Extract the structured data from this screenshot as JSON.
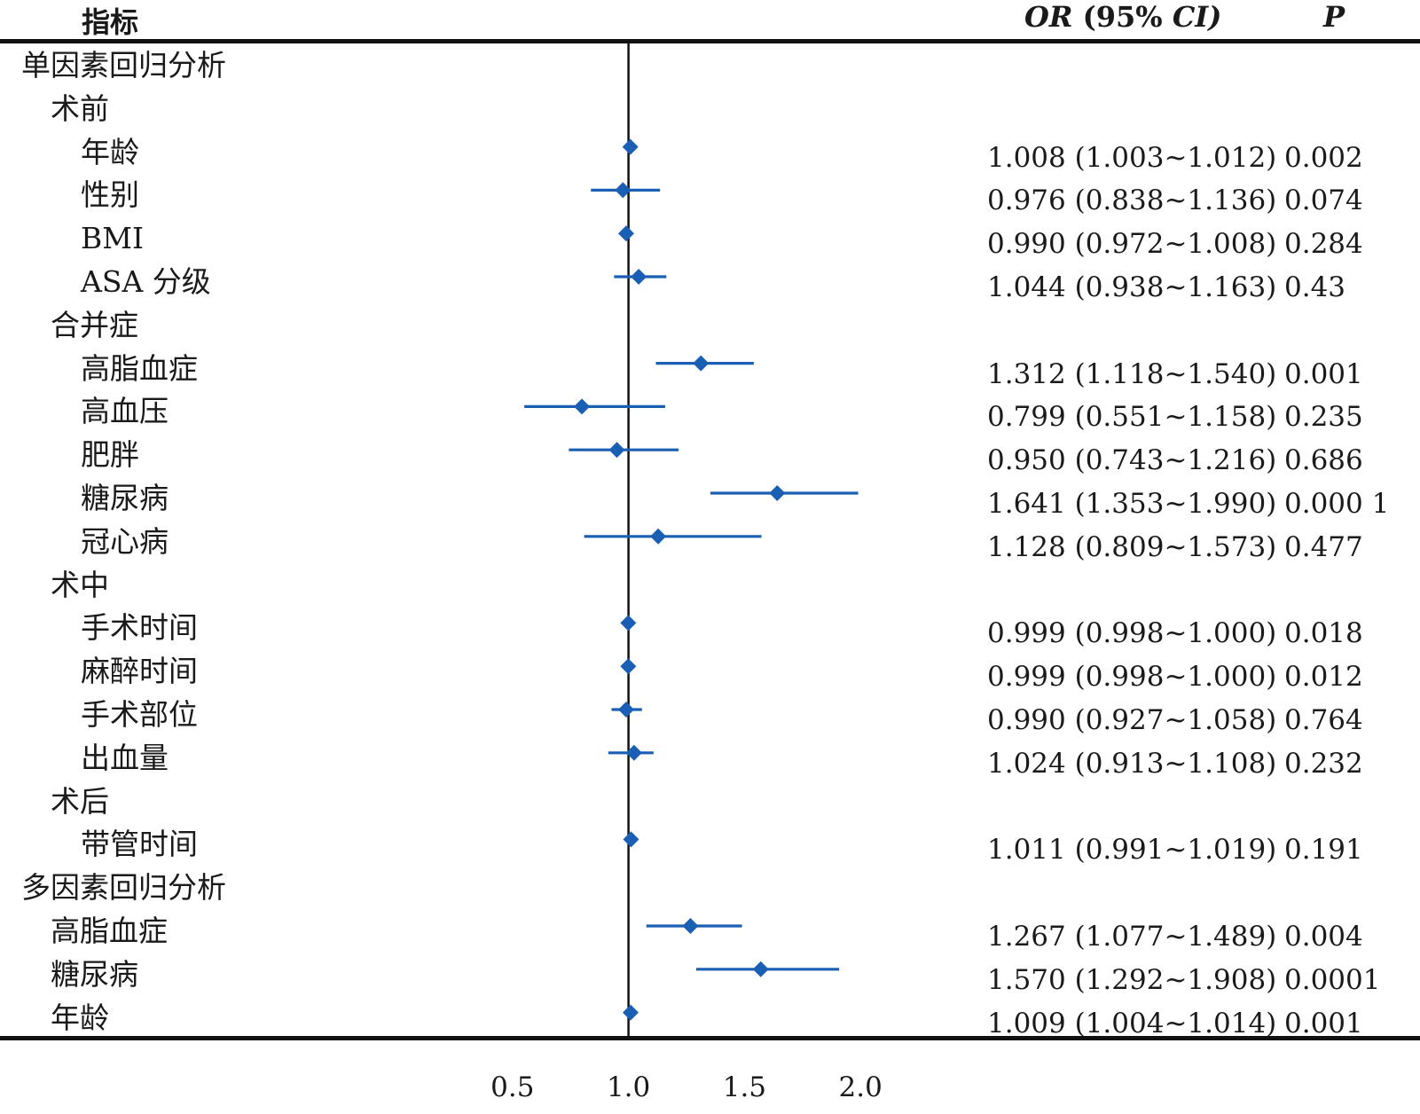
{
  "header": {
    "indicator": "指标",
    "or_ci_or": "OR",
    "or_ci_paren": "(95%",
    "or_ci_ci": "CI)",
    "p": "P"
  },
  "colors": {
    "marker": "#1a5fb4",
    "axis": "#111111"
  },
  "chart_data": {
    "type": "forest",
    "x_ticks": [
      0.5,
      1.0,
      1.5,
      2.0
    ],
    "x_tick_labels": [
      "0.5",
      "1.0",
      "1.5",
      "2.0"
    ],
    "xlim": [
      0.5,
      2.0
    ],
    "reference_line": 1.0,
    "rows": [
      {
        "label": "单因素回归分析",
        "level": 0,
        "or": null
      },
      {
        "label": "术前",
        "level": 1,
        "or": null
      },
      {
        "label": "年龄",
        "level": 2,
        "or": 1.008,
        "lo": 1.003,
        "hi": 1.012,
        "or_ci": "1.008 (1.003~1.012)",
        "p": "0.002"
      },
      {
        "label": "性别",
        "level": 2,
        "or": 0.976,
        "lo": 0.838,
        "hi": 1.136,
        "or_ci": "0.976 (0.838~1.136)",
        "p": "0.074"
      },
      {
        "label": "BMI",
        "level": 2,
        "or": 0.99,
        "lo": 0.972,
        "hi": 1.008,
        "or_ci": "0.990 (0.972~1.008)",
        "p": "0.284"
      },
      {
        "label": "ASA 分级",
        "level": 2,
        "or": 1.044,
        "lo": 0.938,
        "hi": 1.163,
        "or_ci": "1.044 (0.938~1.163)",
        "p": "0.43"
      },
      {
        "label": "合并症",
        "level": 1,
        "or": null
      },
      {
        "label": "高脂血症",
        "level": 2,
        "or": 1.312,
        "lo": 1.118,
        "hi": 1.54,
        "or_ci": "1.312 (1.118~1.540)",
        "p": "0.001"
      },
      {
        "label": "高血压",
        "level": 2,
        "or": 0.799,
        "lo": 0.551,
        "hi": 1.158,
        "or_ci": "0.799 (0.551~1.158)",
        "p": "0.235"
      },
      {
        "label": "肥胖",
        "level": 2,
        "or": 0.95,
        "lo": 0.743,
        "hi": 1.216,
        "or_ci": "0.950 (0.743~1.216)",
        "p": "0.686"
      },
      {
        "label": "糖尿病",
        "level": 2,
        "or": 1.641,
        "lo": 1.353,
        "hi": 1.99,
        "or_ci": "1.641 (1.353~1.990)",
        "p": "0.000 1"
      },
      {
        "label": "冠心病",
        "level": 2,
        "or": 1.128,
        "lo": 0.809,
        "hi": 1.573,
        "or_ci": "1.128 (0.809~1.573)",
        "p": "0.477"
      },
      {
        "label": "术中",
        "level": 1,
        "or": null
      },
      {
        "label": "手术时间",
        "level": 2,
        "or": 0.999,
        "lo": 0.998,
        "hi": 1.0,
        "or_ci": "0.999 (0.998~1.000)",
        "p": "0.018"
      },
      {
        "label": "麻醉时间",
        "level": 2,
        "or": 0.999,
        "lo": 0.998,
        "hi": 1.0,
        "or_ci": "0.999 (0.998~1.000)",
        "p": "0.012"
      },
      {
        "label": "手术部位",
        "level": 2,
        "or": 0.99,
        "lo": 0.927,
        "hi": 1.058,
        "or_ci": "0.990 (0.927~1.058)",
        "p": "0.764"
      },
      {
        "label": "出血量",
        "level": 2,
        "or": 1.024,
        "lo": 0.913,
        "hi": 1.108,
        "or_ci": "1.024 (0.913~1.108)",
        "p": "0.232"
      },
      {
        "label": "术后",
        "level": 1,
        "or": null
      },
      {
        "label": "带管时间",
        "level": 2,
        "or": 1.011,
        "lo": 0.991,
        "hi": 1.019,
        "or_ci": "1.011 (0.991~1.019)",
        "p": "0.191"
      },
      {
        "label": "多因素回归分析",
        "level": 0,
        "or": null
      },
      {
        "label": "高脂血症",
        "level": 1,
        "or": 1.267,
        "lo": 1.077,
        "hi": 1.489,
        "or_ci": "1.267 (1.077~1.489)",
        "p": "0.004"
      },
      {
        "label": "糖尿病",
        "level": 1,
        "or": 1.57,
        "lo": 1.292,
        "hi": 1.908,
        "or_ci": "1.570 (1.292~1.908)",
        "p": "0.0001"
      },
      {
        "label": "年龄",
        "level": 1,
        "or": 1.009,
        "lo": 1.004,
        "hi": 1.014,
        "or_ci": "1.009 (1.004~1.014)",
        "p": "0.001"
      }
    ]
  }
}
